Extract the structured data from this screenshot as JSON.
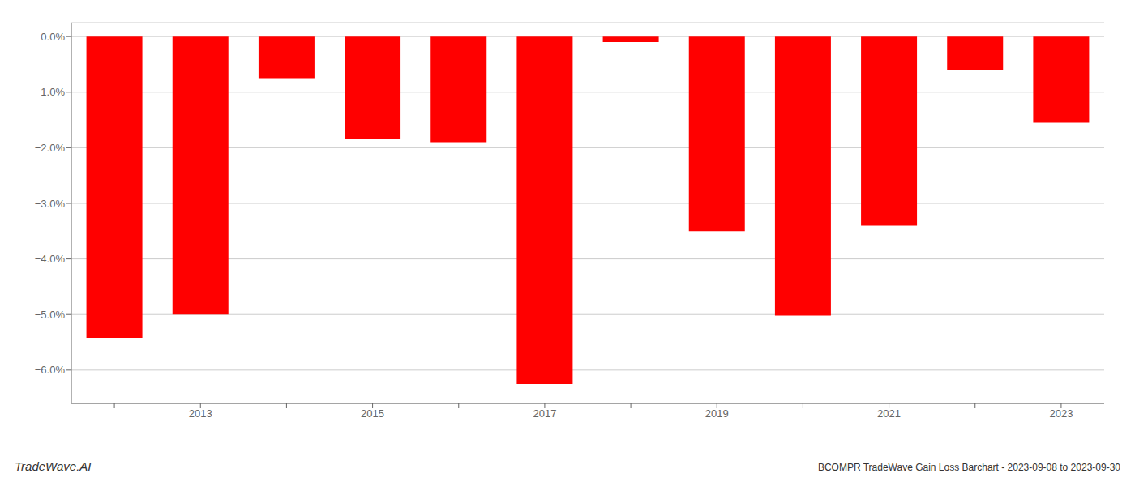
{
  "chart_data": {
    "type": "bar",
    "categories": [
      null,
      "2013",
      null,
      "2015",
      null,
      "2017",
      null,
      "2019",
      null,
      "2021",
      null,
      "2023"
    ],
    "values": [
      -5.42,
      -5.0,
      -0.75,
      -1.85,
      -1.9,
      -6.25,
      -0.1,
      -3.5,
      -5.02,
      -3.4,
      -0.6,
      -1.55
    ],
    "color": "#FF0000",
    "ylim": [
      -6.6,
      0.25
    ],
    "yticks": [
      {
        "value": 0.0,
        "label": "0.0%"
      },
      {
        "value": -1.0,
        "label": "−1.0%"
      },
      {
        "value": -2.0,
        "label": "−2.0%"
      },
      {
        "value": -3.0,
        "label": "−3.0%"
      },
      {
        "value": -4.0,
        "label": "−4.0%"
      },
      {
        "value": -5.0,
        "label": "−5.0%"
      },
      {
        "value": -6.0,
        "label": "−6.0%"
      }
    ],
    "grid": true,
    "annotations": [
      "TradeWave.AI",
      "BCOMPR TradeWave Gain Loss Barchart - 2023-09-08 to 2023-09-30"
    ]
  }
}
